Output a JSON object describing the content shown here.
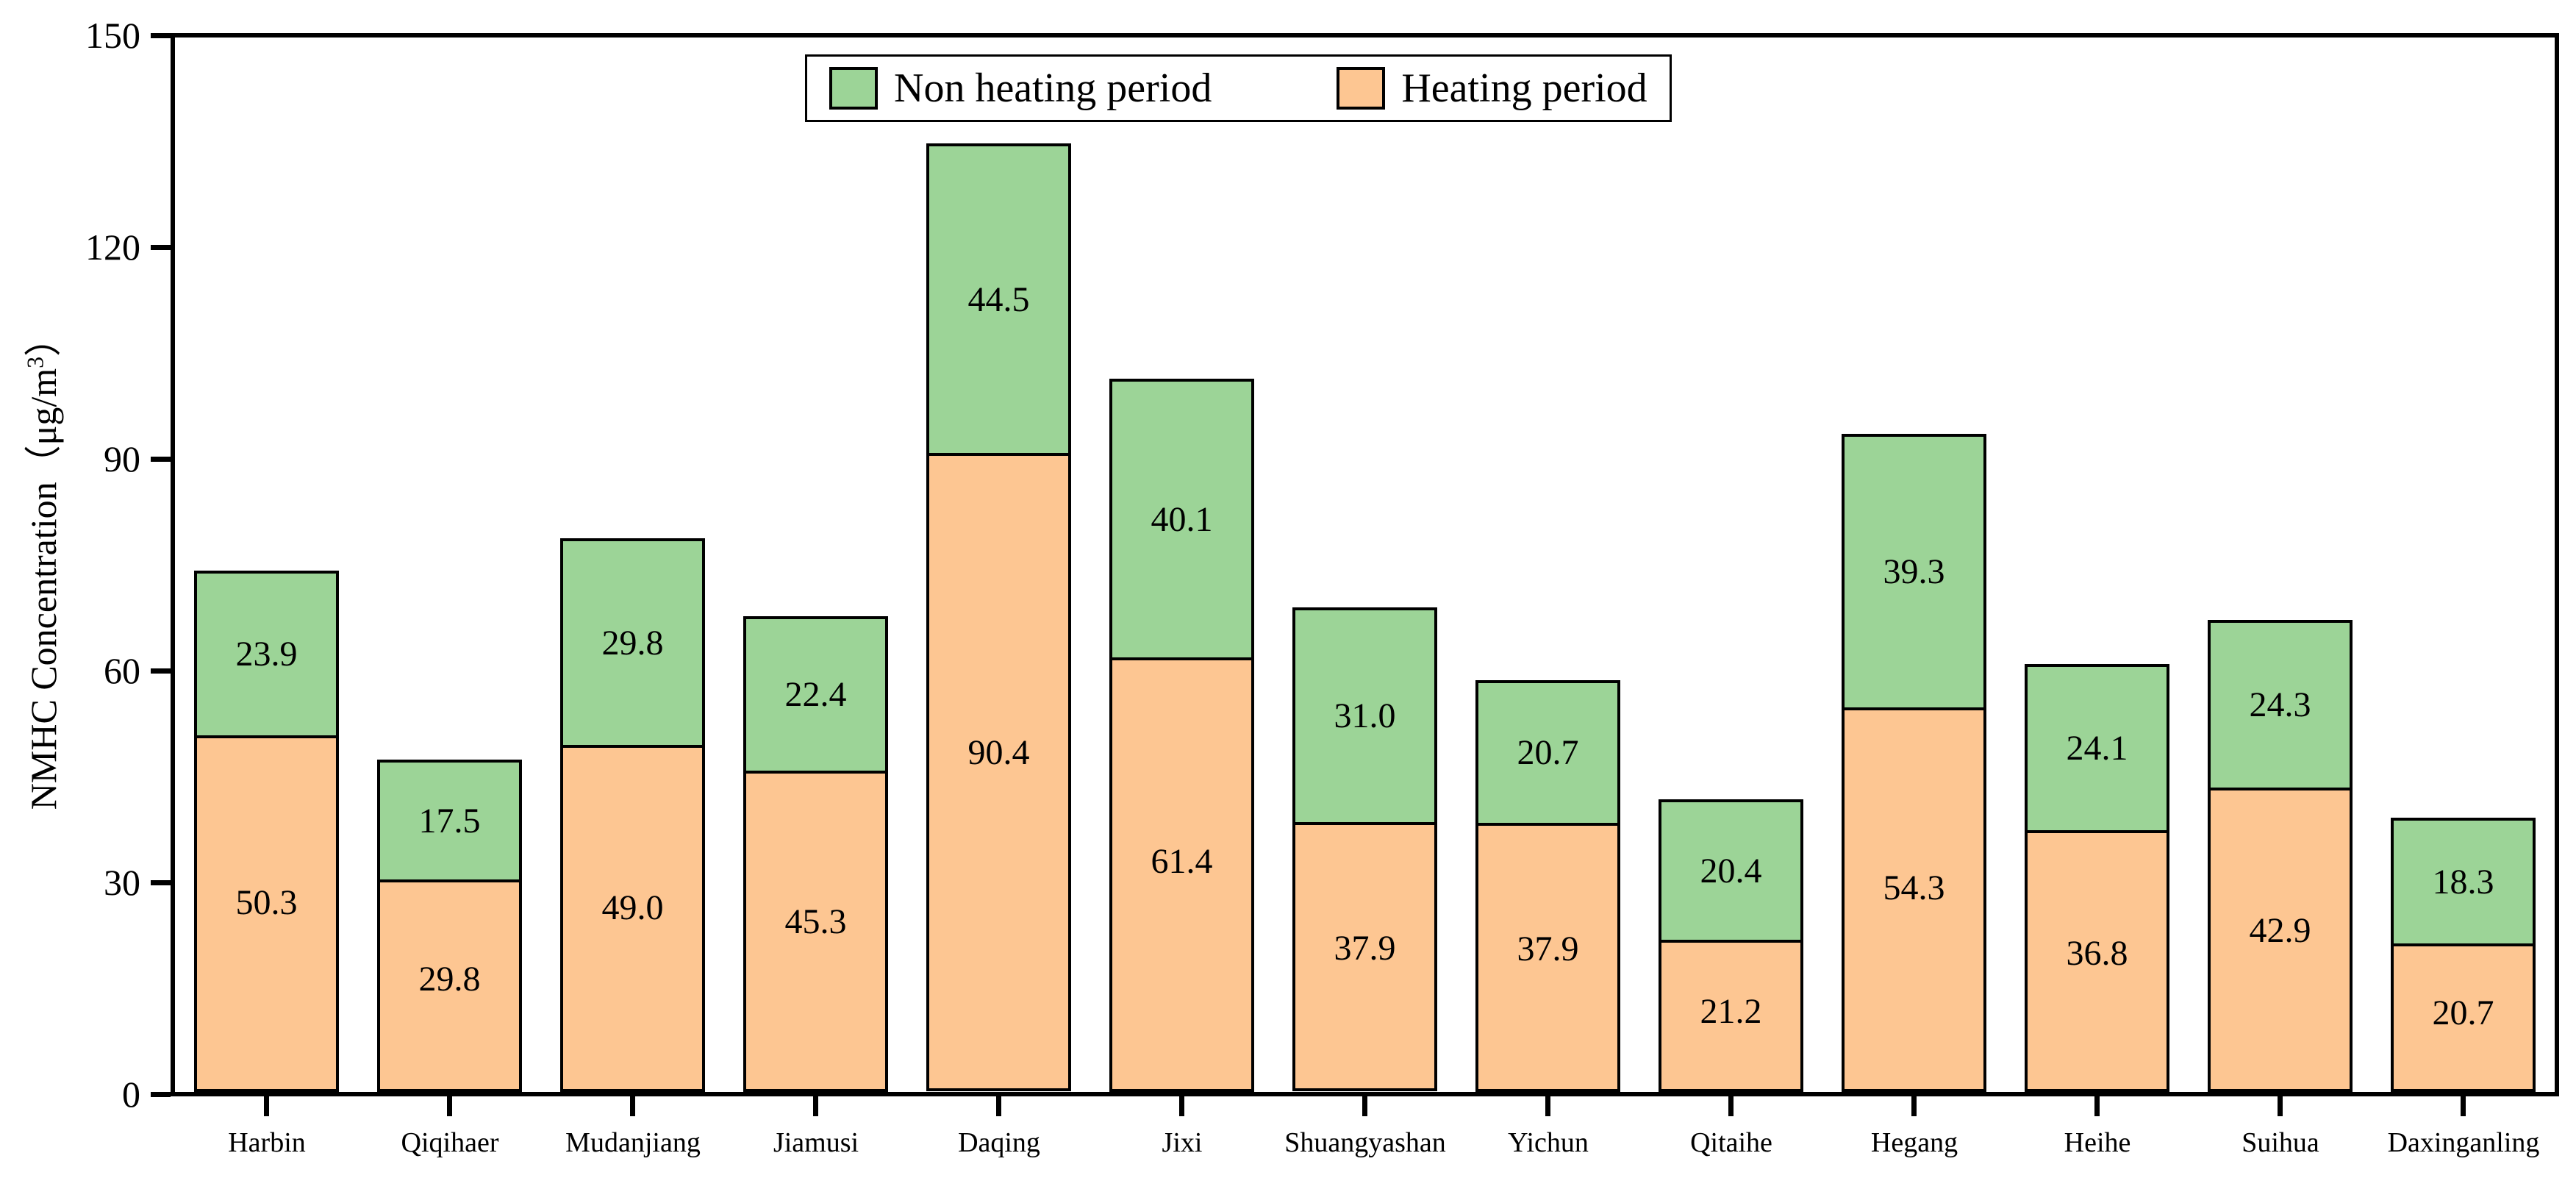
{
  "chart_data": {
    "type": "bar",
    "stacked": true,
    "categories": [
      "Harbin",
      "Qiqihaer",
      "Mudanjiang",
      "Jiamusi",
      "Daqing",
      "Jixi",
      "Shuangyashan",
      "Yichun",
      "Qitaihe",
      "Hegang",
      "Heihe",
      "Suihua",
      "Daxinganling"
    ],
    "series": [
      {
        "name": "Heating period",
        "color": "#FDC692",
        "values": [
          50.3,
          29.8,
          49.0,
          45.3,
          90.4,
          61.4,
          37.9,
          37.9,
          21.2,
          54.3,
          36.8,
          42.9,
          20.7
        ]
      },
      {
        "name": "Non heating period",
        "color": "#9CD497",
        "values": [
          23.9,
          17.5,
          29.8,
          22.4,
          44.5,
          40.1,
          31.0,
          20.7,
          20.4,
          39.3,
          24.1,
          24.3,
          18.3
        ]
      }
    ],
    "ylabel_prefix": "NMHC Concentration（μg/m",
    "ylabel_sup": "3",
    "ylabel_suffix": "）",
    "xlabel": "",
    "title": "",
    "ylim": [
      0,
      150
    ],
    "yticks": [
      0,
      30,
      60,
      90,
      120,
      150
    ],
    "grid": false,
    "legend_position": "top-center",
    "value_label_decimals": 1
  },
  "legend": {
    "items": [
      {
        "label": "Non heating period",
        "color": "#9CD497"
      },
      {
        "label": "Heating period",
        "color": "#FDC692"
      }
    ]
  },
  "colors": {
    "bar_border": "#000000",
    "axis": "#000000",
    "background": "#FFFFFF"
  }
}
